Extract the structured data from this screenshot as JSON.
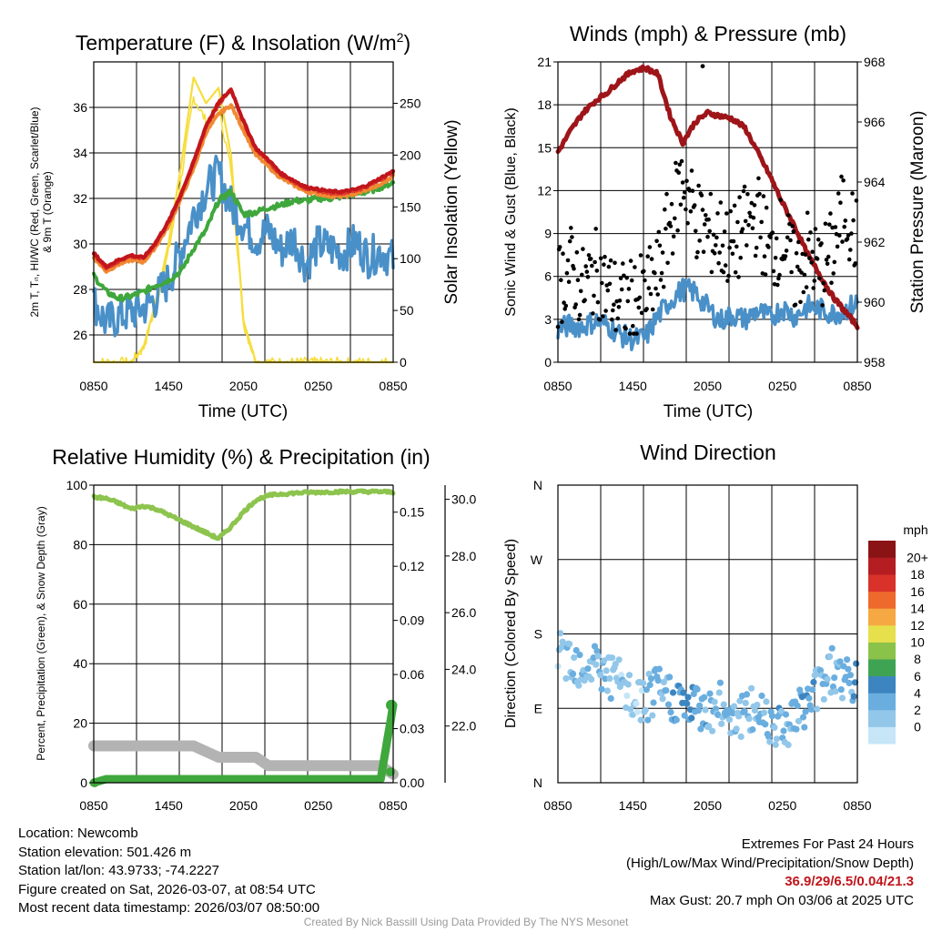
{
  "time_ticks": [
    "0850",
    "1450",
    "2050",
    "0250",
    "0850"
  ],
  "colors": {
    "temp": "#c0161c",
    "temp_mid": "#e03a2a",
    "temp_9m": "#f08a32",
    "dewpoint": "#3fa73c",
    "windchill": "#4a90c8",
    "insolation": "#f7dd3c",
    "pressure": "#9e1519",
    "wind": "#4a90c8",
    "gust": "#000000",
    "rh": "#8dc44e",
    "precip": "#3fa73c",
    "snow": "#b3b3b3"
  },
  "chart_data": [
    {
      "type": "line",
      "title": "Temperature (F) & Insolation (W/m",
      "title_sup": "2",
      "title_close": ")",
      "xlabel": "Time (UTC)",
      "ylabel_lines": [
        "2m T, Tₙ, HI/WC (Red, Green, Scarlet/Blue)",
        "& 9m T (Orange)"
      ],
      "ylabel2": "Solar Insolation (Yellow)",
      "ylim": [
        24.8,
        38.0
      ],
      "yticks": [
        "26",
        "28",
        "30",
        "32",
        "34",
        "36"
      ],
      "y2lim": [
        0,
        290
      ],
      "y2ticks": [
        "0",
        "50",
        "100",
        "150",
        "200",
        "250"
      ],
      "x": [
        0,
        1,
        2,
        3,
        4,
        5,
        6,
        7,
        8,
        9,
        10,
        11,
        12,
        13,
        14,
        15,
        16,
        17,
        18,
        19,
        20,
        21,
        22,
        23,
        24
      ],
      "series": [
        {
          "name": "2m Temperature",
          "values": [
            29.6,
            29.0,
            29.3,
            29.5,
            29.4,
            30.1,
            31.0,
            32.2,
            33.6,
            35.2,
            36.2,
            36.8,
            35.4,
            34.2,
            33.7,
            33.1,
            32.8,
            32.5,
            32.4,
            32.3,
            32.3,
            32.4,
            32.6,
            32.9,
            33.2
          ]
        },
        {
          "name": "9m Temperature",
          "values": [
            29.4,
            28.8,
            29.1,
            29.3,
            29.2,
            29.9,
            30.8,
            32.0,
            33.3,
            34.9,
            35.7,
            36.1,
            35.0,
            33.9,
            33.4,
            32.9,
            32.6,
            32.3,
            32.2,
            32.1,
            32.1,
            32.2,
            32.4,
            32.6,
            33.0
          ]
        },
        {
          "name": "Dewpoint",
          "values": [
            28.6,
            27.9,
            27.6,
            27.7,
            27.9,
            28.2,
            28.4,
            28.8,
            29.8,
            30.6,
            31.9,
            32.3,
            31.3,
            31.4,
            31.6,
            31.7,
            31.9,
            31.9,
            32.0,
            32.0,
            32.1,
            32.2,
            32.3,
            32.5,
            32.7
          ]
        },
        {
          "name": "Wind Chill",
          "values": [
            27.5,
            26.5,
            26.8,
            27.0,
            27.2,
            27.6,
            28.4,
            29.7,
            31.3,
            32.4,
            33.1,
            31.7,
            30.9,
            30.2,
            30.6,
            29.7,
            30.3,
            29.1,
            30.0,
            29.8,
            29.6,
            30.1,
            29.4,
            29.7,
            29.3
          ]
        },
        {
          "name": "Solar Insolation",
          "values": [
            0,
            0,
            0,
            0,
            15,
            60,
            115,
            190,
            275,
            250,
            265,
            200,
            40,
            0,
            0,
            0,
            0,
            0,
            0,
            0,
            0,
            0,
            0,
            0,
            0
          ]
        }
      ]
    },
    {
      "type": "line",
      "title": "Winds (mph) & Pressure (mb)",
      "xlabel": "Time (UTC)",
      "ylabel": "Sonic Wind & Gust (Blue, Black)",
      "ylabel2": "Station Pressure (Maroon)",
      "ylim": [
        0,
        21
      ],
      "yticks": [
        "0",
        "3",
        "6",
        "9",
        "12",
        "15",
        "18",
        "21"
      ],
      "y2lim": [
        958,
        968
      ],
      "y2ticks": [
        "958",
        "960",
        "962",
        "964",
        "966",
        "968"
      ],
      "x": [
        0,
        1,
        2,
        3,
        4,
        5,
        6,
        7,
        8,
        9,
        10,
        11,
        12,
        13,
        14,
        15,
        16,
        17,
        18,
        19,
        20,
        21,
        22,
        23,
        24
      ],
      "series": [
        {
          "name": "Station Pressure",
          "values": [
            965.0,
            965.7,
            966.3,
            966.7,
            967.0,
            967.4,
            967.7,
            967.8,
            967.6,
            966.2,
            965.3,
            966.0,
            966.3,
            966.2,
            966.1,
            965.8,
            965.0,
            964.2,
            963.3,
            962.5,
            961.6,
            960.9,
            960.2,
            959.7,
            959.2
          ]
        },
        {
          "name": "Sonic Wind",
          "values": [
            2.3,
            2.6,
            2.5,
            2.9,
            2.6,
            1.9,
            1.6,
            1.7,
            3.2,
            4.3,
            5.1,
            4.9,
            3.8,
            2.9,
            3.3,
            3.0,
            3.6,
            3.1,
            3.8,
            3.2,
            3.9,
            3.7,
            3.4,
            3.6,
            4.2
          ]
        },
        {
          "name": "Gust",
          "values": [
            5.3,
            6.7,
            5.1,
            6.4,
            5.0,
            4.1,
            4.3,
            4.6,
            6.1,
            9.8,
            13.0,
            10.2,
            9.0,
            8.7,
            7.8,
            9.5,
            10.4,
            7.4,
            8.9,
            6.1,
            7.7,
            6.4,
            7.8,
            11.0,
            8.4
          ]
        }
      ],
      "max_gust": 20.7
    },
    {
      "type": "line",
      "title": "Relative Humidity (%) & Precipitation (in)",
      "ylabel": "Percent, Precipitation (Green), & Snow Depth (Gray)",
      "ylim": [
        0,
        100
      ],
      "yticks": [
        "0",
        "20",
        "40",
        "60",
        "80",
        "100"
      ],
      "y2lim": [
        0,
        0.165
      ],
      "y2ticks": [
        "0.00",
        "0.03",
        "0.06",
        "0.09",
        "0.12",
        "0.15"
      ],
      "y3lim": [
        20.0,
        30.5
      ],
      "y3ticks": [
        "22.0",
        "24.0",
        "26.0",
        "28.0",
        "30.0"
      ],
      "x": [
        0,
        1,
        2,
        3,
        4,
        5,
        6,
        7,
        8,
        9,
        10,
        11,
        12,
        13,
        14,
        15,
        16,
        17,
        18,
        19,
        20,
        21,
        22,
        23,
        24
      ],
      "series": [
        {
          "name": "Relative Humidity",
          "values": [
            96,
            95.5,
            94,
            92,
            93,
            92,
            90,
            88,
            86,
            84,
            82,
            86,
            91,
            95,
            96.5,
            97,
            97.3,
            97.5,
            97.6,
            97.7,
            97.8,
            97.8,
            97.8,
            97.8,
            97.6
          ]
        },
        {
          "name": "Precipitation",
          "values": [
            0,
            0.002,
            0.002,
            0.002,
            0.002,
            0.002,
            0.002,
            0.002,
            0.002,
            0.002,
            0.002,
            0.002,
            0.002,
            0.002,
            0.002,
            0.002,
            0.002,
            0.002,
            0.002,
            0.002,
            0.002,
            0.002,
            0.002,
            0.002,
            0.043
          ]
        },
        {
          "name": "Snow Depth",
          "values": [
            21.3,
            21.3,
            21.3,
            21.3,
            21.3,
            21.3,
            21.3,
            21.3,
            21.3,
            21.1,
            20.9,
            20.9,
            20.9,
            20.9,
            20.6,
            20.6,
            20.6,
            20.6,
            20.6,
            20.6,
            20.6,
            20.6,
            20.6,
            20.6,
            20.3
          ]
        }
      ]
    },
    {
      "type": "scatter",
      "title": "Wind Direction",
      "ylabel": "Direction (Colored By Speed)",
      "yticks": [
        "N",
        "E",
        "S",
        "W",
        "N"
      ],
      "ylim": [
        0,
        360
      ],
      "legend_title": "mph",
      "legend_labels": [
        "0",
        "2",
        "4",
        "6",
        "8",
        "10",
        "12",
        "14",
        "16",
        "18",
        "20+"
      ],
      "legend_colors": [
        "#c6e6f7",
        "#92c7ea",
        "#6aaedf",
        "#3d85c0",
        "#3fa354",
        "#8bc24a",
        "#e6e04c",
        "#f6a843",
        "#ed6a2c",
        "#d9322a",
        "#b41e22",
        "#8a1316"
      ],
      "x": [
        0,
        1,
        2,
        3,
        4,
        5,
        6,
        7,
        8,
        9,
        10,
        11,
        12,
        13,
        14,
        15,
        16,
        17,
        18,
        19,
        20,
        21,
        22,
        23,
        24
      ],
      "direction_deg": [
        150,
        155,
        140,
        145,
        130,
        120,
        95,
        100,
        110,
        105,
        95,
        90,
        88,
        92,
        85,
        80,
        90,
        78,
        70,
        80,
        95,
        120,
        140,
        125,
        115
      ],
      "speed_mph": [
        2.3,
        2.6,
        2.5,
        2.9,
        2.6,
        1.9,
        1.6,
        1.7,
        3.2,
        4.3,
        5.1,
        4.9,
        3.8,
        2.9,
        3.3,
        3.0,
        3.6,
        3.1,
        3.8,
        3.2,
        3.9,
        3.7,
        3.4,
        3.6,
        4.2
      ]
    }
  ],
  "info": {
    "location": "Location: Newcomb",
    "elevation": "Station elevation: 501.426 m",
    "latlon": "Station lat/lon: 43.9733; -74.2227",
    "created": "Figure created on Sat, 2026-03-07, at 08:54 UTC",
    "recent": "Most recent data timestamp: 2026/03/07 08:50:00",
    "extremes_title": "Extremes For Past 24 Hours",
    "extremes_desc": "(High/Low/Max Wind/Precipitation/Snow Depth)",
    "extremes_values": "36.9/29/6.5/0.04/21.3",
    "max_gust": "Max Gust: 20.7 mph On 03/06 at 2025 UTC",
    "credit": "Created By Nick Bassill Using Data Provided By The NYS Mesonet"
  }
}
